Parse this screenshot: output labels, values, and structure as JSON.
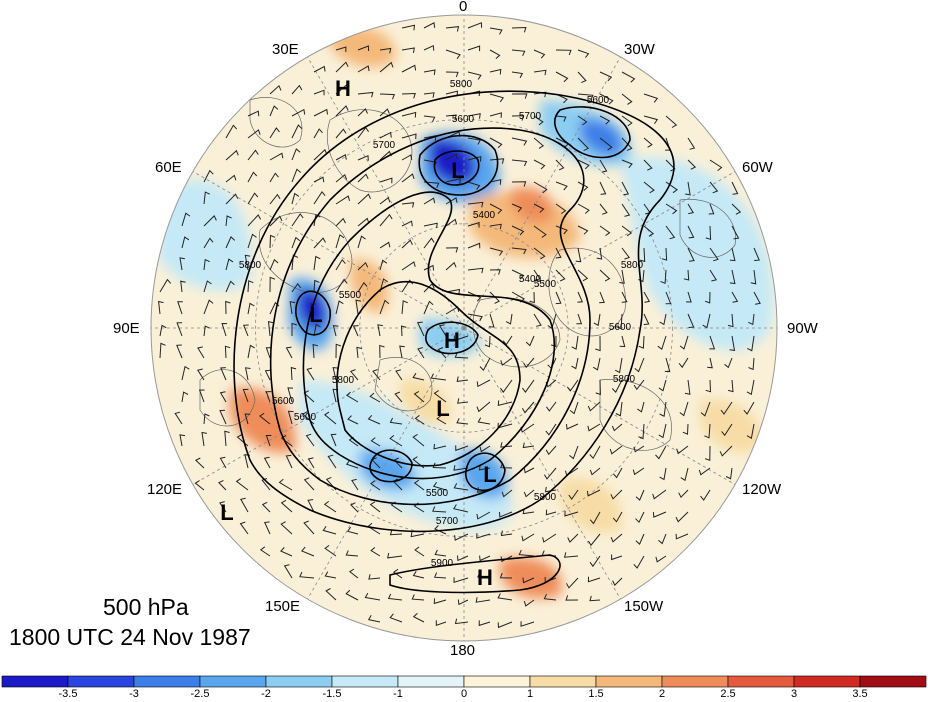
{
  "title": {
    "level": "500 hPa",
    "time": "1800 UTC 24 Nov 1987"
  },
  "longitude_labels": [
    {
      "id": "0",
      "text": "0"
    },
    {
      "id": "30w",
      "text": "30W"
    },
    {
      "id": "60w",
      "text": "60W"
    },
    {
      "id": "90w",
      "text": "90W"
    },
    {
      "id": "120w",
      "text": "120W"
    },
    {
      "id": "150w",
      "text": "150W"
    },
    {
      "id": "180",
      "text": "180"
    },
    {
      "id": "150e",
      "text": "150E"
    },
    {
      "id": "120e",
      "text": "120E"
    },
    {
      "id": "90e",
      "text": "90E"
    },
    {
      "id": "60e",
      "text": "60E"
    },
    {
      "id": "30e",
      "text": "30E"
    }
  ],
  "pressure_centers": [
    {
      "label": "H",
      "type": "high"
    },
    {
      "label": "L",
      "type": "low"
    },
    {
      "label": "L",
      "type": "low"
    },
    {
      "label": "H",
      "type": "high"
    },
    {
      "label": "L",
      "type": "low"
    },
    {
      "label": "L",
      "type": "low"
    },
    {
      "label": "H",
      "type": "high"
    },
    {
      "label": "L",
      "type": "low"
    }
  ],
  "contour_labels": [
    "5800",
    "5800",
    "5700",
    "5600",
    "5700",
    "5600",
    "5500",
    "5400",
    "5800",
    "5500",
    "5800",
    "5400",
    "5600",
    "5800",
    "5500",
    "5700",
    "5800",
    "5900",
    "5600",
    "5600"
  ],
  "colorbar": {
    "labels": [
      "-3.5",
      "-3",
      "-2.5",
      "-2",
      "-1.5",
      "-1",
      "0",
      "1",
      "1.5",
      "2",
      "2.5",
      "3",
      "3.5"
    ],
    "colors": [
      "#1a1ac8",
      "#2a44e0",
      "#3d7fe8",
      "#5aa6ee",
      "#8ccdf2",
      "#c5e9f6",
      "#e2f4f8",
      "#fcf3d9",
      "#f7dca5",
      "#f4b97a",
      "#ef8d5a",
      "#e55a3c",
      "#d02a22",
      "#a00d14"
    ]
  },
  "colors": {
    "coast": "#666666",
    "contour": "#000000",
    "grid": "#888888"
  }
}
